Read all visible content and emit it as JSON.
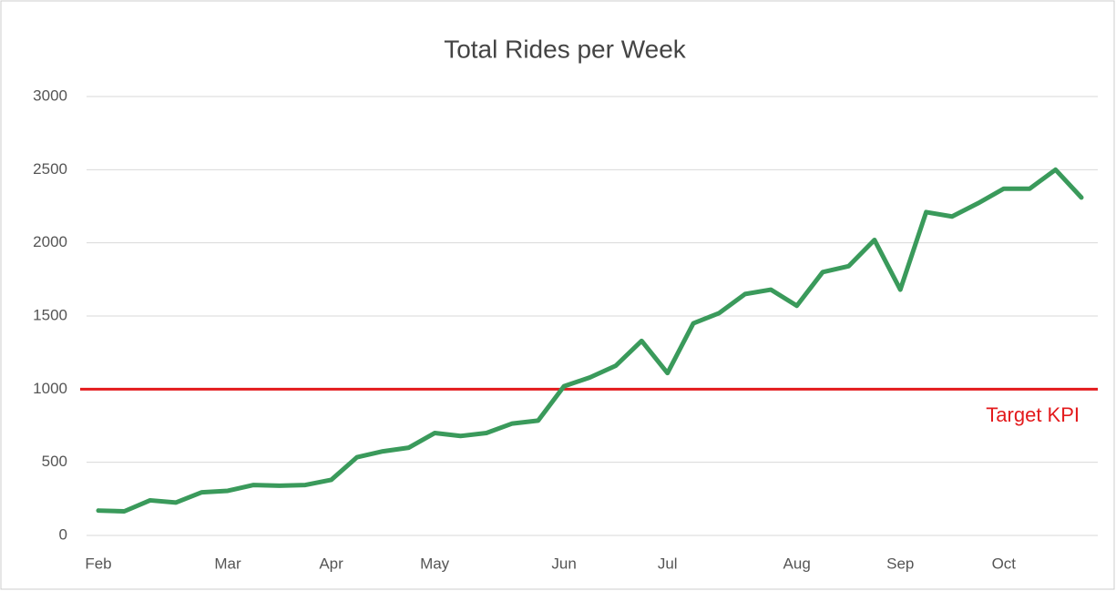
{
  "chart_data": {
    "type": "line",
    "title": "Total Rides per Week",
    "categories": [
      "Feb",
      null,
      null,
      null,
      null,
      "Mar",
      null,
      null,
      null,
      "Apr",
      null,
      null,
      null,
      "May",
      null,
      null,
      null,
      null,
      "Jun",
      null,
      null,
      null,
      "Jul",
      null,
      null,
      null,
      null,
      "Aug",
      null,
      null,
      null,
      "Sep",
      null,
      null,
      null,
      "Oct",
      null,
      null,
      null
    ],
    "series": [
      {
        "name": "Total Rides",
        "color": "#3a9a5b",
        "values": [
          170,
          165,
          240,
          225,
          295,
          305,
          345,
          340,
          345,
          380,
          535,
          575,
          600,
          700,
          680,
          700,
          765,
          785,
          1020,
          1080,
          1160,
          1330,
          1110,
          1450,
          1520,
          1650,
          1680,
          1570,
          1800,
          1840,
          2020,
          1680,
          2210,
          2180,
          2270,
          2370,
          2370,
          2500,
          2310
        ]
      }
    ],
    "target": {
      "label": "Target KPI",
      "value": 1000,
      "color": "#e31a1c"
    },
    "ylim": [
      0,
      3000
    ],
    "yticks": [
      0,
      500,
      1000,
      1500,
      2000,
      2500,
      3000
    ],
    "grid": true
  }
}
